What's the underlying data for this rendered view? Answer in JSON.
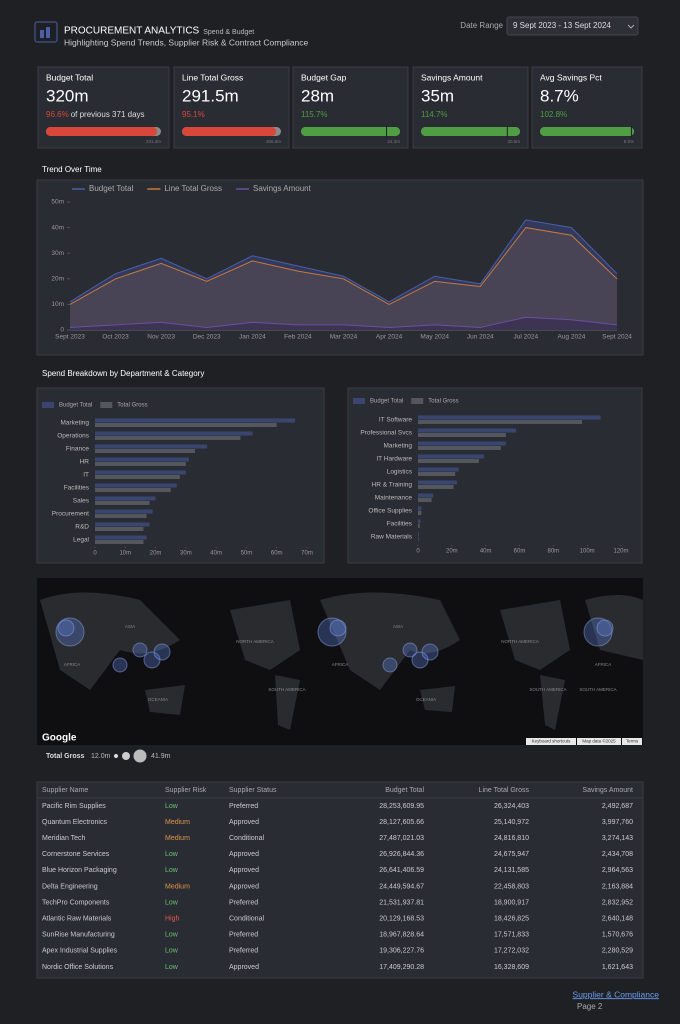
{
  "header": {
    "title": "PROCUREMENT ANALYTICS",
    "tag": "Spend & Budget",
    "subtitle": "Highlighting Spend Trends, Supplier Risk & Contract Compliance",
    "date_label": "Date Range",
    "date_value": "9 Sept 2023 - 13 Sept 2024"
  },
  "kpis": [
    {
      "label": "Budget Total",
      "value": "320m",
      "pct": 96.6,
      "pct_label": "96.6%",
      "note": "of previous 371 days",
      "target": "331.3m",
      "color": "#d9463a"
    },
    {
      "label": "Line Total Gross",
      "value": "291.5m",
      "pct": 95.1,
      "pct_label": "95.1%",
      "target": "306.5m",
      "color": "#d9463a"
    },
    {
      "label": "Budget Gap",
      "value": "28m",
      "pct": 115.7,
      "pct_label": "115.7%",
      "target": "24.2m",
      "color": "#4f9e44"
    },
    {
      "label": "Savings Amount",
      "value": "35m",
      "pct": 114.7,
      "pct_label": "114.7%",
      "target": "30.5m",
      "color": "#4f9e44"
    },
    {
      "label": "Avg Savings Pct",
      "value": "8.7%",
      "pct": 102.8,
      "pct_label": "102.8%",
      "target": "8.5%",
      "color": "#4f9e44"
    }
  ],
  "chart_data": [
    {
      "type": "area",
      "title": "Trend Over Time",
      "categories": [
        "Sept 2023",
        "Oct 2023",
        "Nov 2023",
        "Dec 2023",
        "Jan 2024",
        "Feb 2024",
        "Mar 2024",
        "Apr 2024",
        "May 2024",
        "Jun 2024",
        "Jul 2024",
        "Aug 2024",
        "Sept 2024"
      ],
      "series": [
        {
          "name": "Budget Total",
          "color": "#4a5fa8",
          "fill": "#343b62",
          "values": [
            11,
            22,
            28,
            20,
            29,
            25,
            21,
            11,
            21,
            18,
            43,
            40,
            22
          ]
        },
        {
          "name": "Line Total Gross",
          "color": "#c87a3a",
          "fill": "#4b4555",
          "values": [
            10,
            20,
            26,
            19,
            27,
            23,
            20,
            10,
            19,
            17,
            40,
            37,
            20
          ]
        },
        {
          "name": "Savings Amount",
          "color": "#6a4fa0",
          "fill": "#3b3352",
          "values": [
            1,
            2,
            3,
            1,
            3,
            2,
            2,
            1,
            2,
            1,
            5,
            4,
            2
          ]
        }
      ],
      "ylim": [
        0,
        50
      ],
      "yticks": [
        0,
        {
          "value": 10,
          "label": "10m"
        },
        {
          "value": 20,
          "label": "20m"
        },
        {
          "value": 30,
          "label": "30m"
        },
        {
          "value": 40,
          "label": "40m"
        },
        {
          "value": 50,
          "label": "50m"
        }
      ],
      "grid": false
    },
    {
      "type": "bar",
      "orientation": "horizontal",
      "title": "Spend Breakdown by Department & Category",
      "categories": [
        "Marketing",
        "Operations",
        "Finance",
        "HR",
        "IT",
        "Facilities",
        "Sales",
        "Procurement",
        "R&D",
        "Legal"
      ],
      "series": [
        {
          "name": "Budget Total",
          "color": "#3a4670",
          "values": [
            66,
            52,
            37,
            31,
            30,
            27,
            20,
            19,
            18,
            17
          ]
        },
        {
          "name": "Total Gross",
          "color": "#55575f",
          "values": [
            60,
            48,
            33,
            30,
            28,
            25,
            18,
            17,
            16,
            16
          ]
        }
      ],
      "xlim": [
        0,
        70
      ],
      "xticks": [
        0,
        {
          "value": 10,
          "label": "10m"
        },
        {
          "value": 20,
          "label": "20m"
        },
        {
          "value": 30,
          "label": "30m"
        },
        {
          "value": 40,
          "label": "40m"
        },
        {
          "value": 50,
          "label": "50m"
        },
        {
          "value": 60,
          "label": "60m"
        },
        {
          "value": 70,
          "label": "70m"
        }
      ]
    },
    {
      "type": "bar",
      "orientation": "horizontal",
      "categories": [
        "IT Software",
        "Professional Svcs",
        "Marketing",
        "IT Hardware",
        "Logistics",
        "HR & Training",
        "Maintenance",
        "Office Supplies",
        "Facilities",
        "Raw Materials"
      ],
      "series": [
        {
          "name": "Budget Total",
          "color": "#3a4670",
          "values": [
            108,
            58,
            52,
            39,
            24,
            23,
            9,
            2,
            1.5,
            0.5
          ]
        },
        {
          "name": "Total Gross",
          "color": "#55575f",
          "values": [
            97,
            52,
            49,
            36,
            22,
            21,
            8,
            2,
            1,
            0.3
          ]
        }
      ],
      "xlim": [
        0,
        120
      ],
      "xticks": [
        0,
        {
          "value": 20,
          "label": "20m"
        },
        {
          "value": 40,
          "label": "40m"
        },
        {
          "value": 60,
          "label": "60m"
        },
        {
          "value": 80,
          "label": "80m"
        },
        {
          "value": 100,
          "label": "100m"
        },
        {
          "value": 120,
          "label": "120m"
        }
      ]
    }
  ],
  "map": {
    "regions": [
      "ASIA",
      "AFRICA",
      "NORTH AMERICA",
      "SOUTH AMERICA",
      "OCEANIA",
      "ASIA",
      "AFRICA",
      "NORTH AMERICA",
      "SOUTH AMERICA",
      "OCEANIA",
      "AFRICA",
      "SOUTH AMERICA"
    ],
    "brand": "Google",
    "footer": [
      "Keyboard shortcuts",
      "Map data ©2025",
      "Terms"
    ],
    "legend_title": "Total Gross",
    "legend_min": "12.0m",
    "legend_max": "41.9m"
  },
  "table": {
    "columns": [
      "Supplier Name",
      "Supplier Risk",
      "Supplier Status",
      "Budget Total",
      "Line Total Gross",
      "Savings Amount"
    ],
    "risk_colors": {
      "Low": "#6cc070",
      "Medium": "#e0944a",
      "High": "#e05a4a"
    },
    "rows": [
      [
        "Pacific Rim Supplies",
        "Low",
        "Preferred",
        "28,253,609.95",
        "26,324,403",
        "2,492,687"
      ],
      [
        "Quantum Electronics",
        "Medium",
        "Approved",
        "28,127,605.66",
        "25,140,972",
        "3,997,760"
      ],
      [
        "Meridian Tech",
        "Medium",
        "Conditional",
        "27,487,021.03",
        "24,816,810",
        "3,274,143"
      ],
      [
        "Cornerstone Services",
        "Low",
        "Approved",
        "26,926,844.36",
        "24,675,947",
        "2,434,708"
      ],
      [
        "Blue Horizon Packaging",
        "Low",
        "Approved",
        "26,641,406.59",
        "24,131,585",
        "2,964,563"
      ],
      [
        "Delta Engineering",
        "Medium",
        "Approved",
        "24,449,594.67",
        "22,458,803",
        "2,163,884"
      ],
      [
        "TechPro Components",
        "Low",
        "Preferred",
        "21,531,937.81",
        "18,900,917",
        "2,832,952"
      ],
      [
        "Atlantic Raw Materials",
        "High",
        "Conditional",
        "20,129,168.53",
        "18,426,825",
        "2,640,148"
      ],
      [
        "SunRise Manufacturing",
        "Low",
        "Preferred",
        "18,967,828.64",
        "17,571,833",
        "1,570,676"
      ],
      [
        "Apex Industrial Supplies",
        "Low",
        "Preferred",
        "19,306,227.76",
        "17,272,032",
        "2,280,529"
      ],
      [
        "Nordic Office Solutions",
        "Low",
        "Approved",
        "17,409,290.28",
        "16,328,609",
        "1,621,643"
      ]
    ]
  },
  "footer": {
    "link": "Supplier & Compliance",
    "page": "Page 2"
  }
}
